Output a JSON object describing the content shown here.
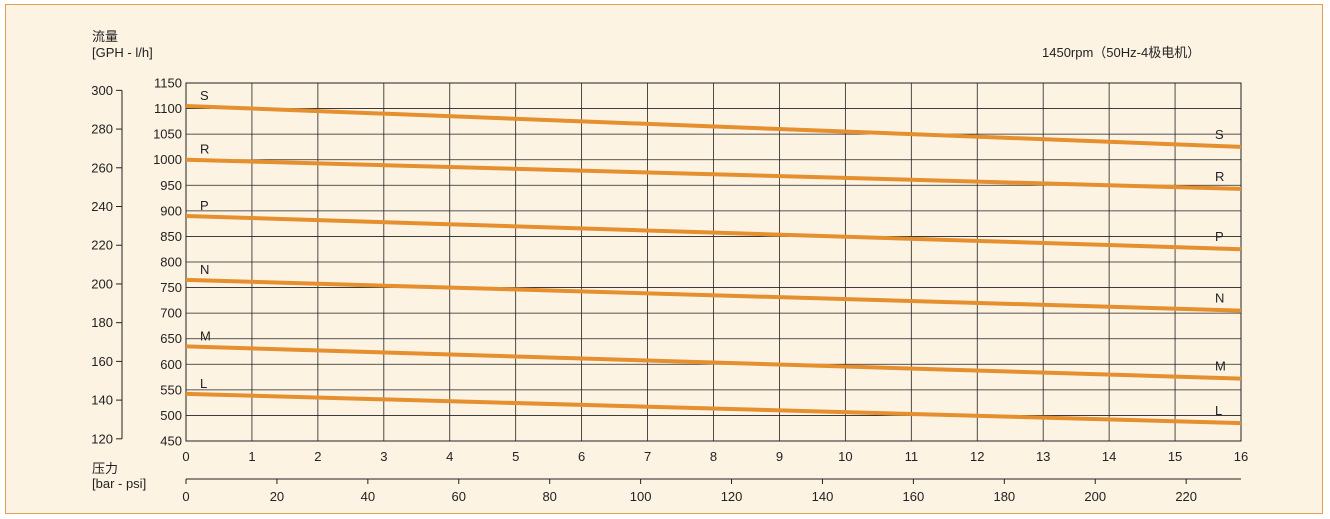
{
  "chart_data": {
    "type": "line",
    "title": "",
    "subtitle": "1450rpm（50Hz-4极电机）",
    "ylabel_line1": "流量",
    "ylabel_line2": "[GPH - l/h]",
    "xlabel_line1": "压力",
    "xlabel_line2": "[bar - psi]",
    "x_bar": {
      "ticks": [
        0,
        1,
        2,
        3,
        4,
        5,
        6,
        7,
        8,
        9,
        10,
        11,
        12,
        13,
        14,
        15,
        16
      ],
      "range": [
        0,
        16
      ]
    },
    "x_psi": {
      "ticks": [
        0,
        20,
        40,
        60,
        80,
        100,
        120,
        140,
        160,
        180,
        200,
        220
      ]
    },
    "y_lh": {
      "ticks": [
        450,
        500,
        550,
        600,
        650,
        700,
        750,
        800,
        850,
        900,
        950,
        1000,
        1050,
        1100,
        1150
      ],
      "range": [
        450,
        1150
      ]
    },
    "y_gph": {
      "ticks": [
        120,
        140,
        160,
        180,
        200,
        220,
        240,
        260,
        280,
        300
      ]
    },
    "grid": true,
    "series": [
      {
        "name": "S",
        "x": [
          0,
          16
        ],
        "values": [
          1105,
          1025
        ]
      },
      {
        "name": "R",
        "x": [
          0,
          16
        ],
        "values": [
          1000,
          943
        ]
      },
      {
        "name": "P",
        "x": [
          0,
          16
        ],
        "values": [
          890,
          825
        ]
      },
      {
        "name": "N",
        "x": [
          0,
          16
        ],
        "values": [
          765,
          705
        ]
      },
      {
        "name": "M",
        "x": [
          0,
          16
        ],
        "values": [
          635,
          572
        ]
      },
      {
        "name": "L",
        "x": [
          0,
          16
        ],
        "values": [
          542,
          485
        ]
      }
    ]
  },
  "colors": {
    "line": "#e58f2e",
    "background": "#fdf3e3",
    "border": "#e3a055",
    "grid": "#222222"
  }
}
